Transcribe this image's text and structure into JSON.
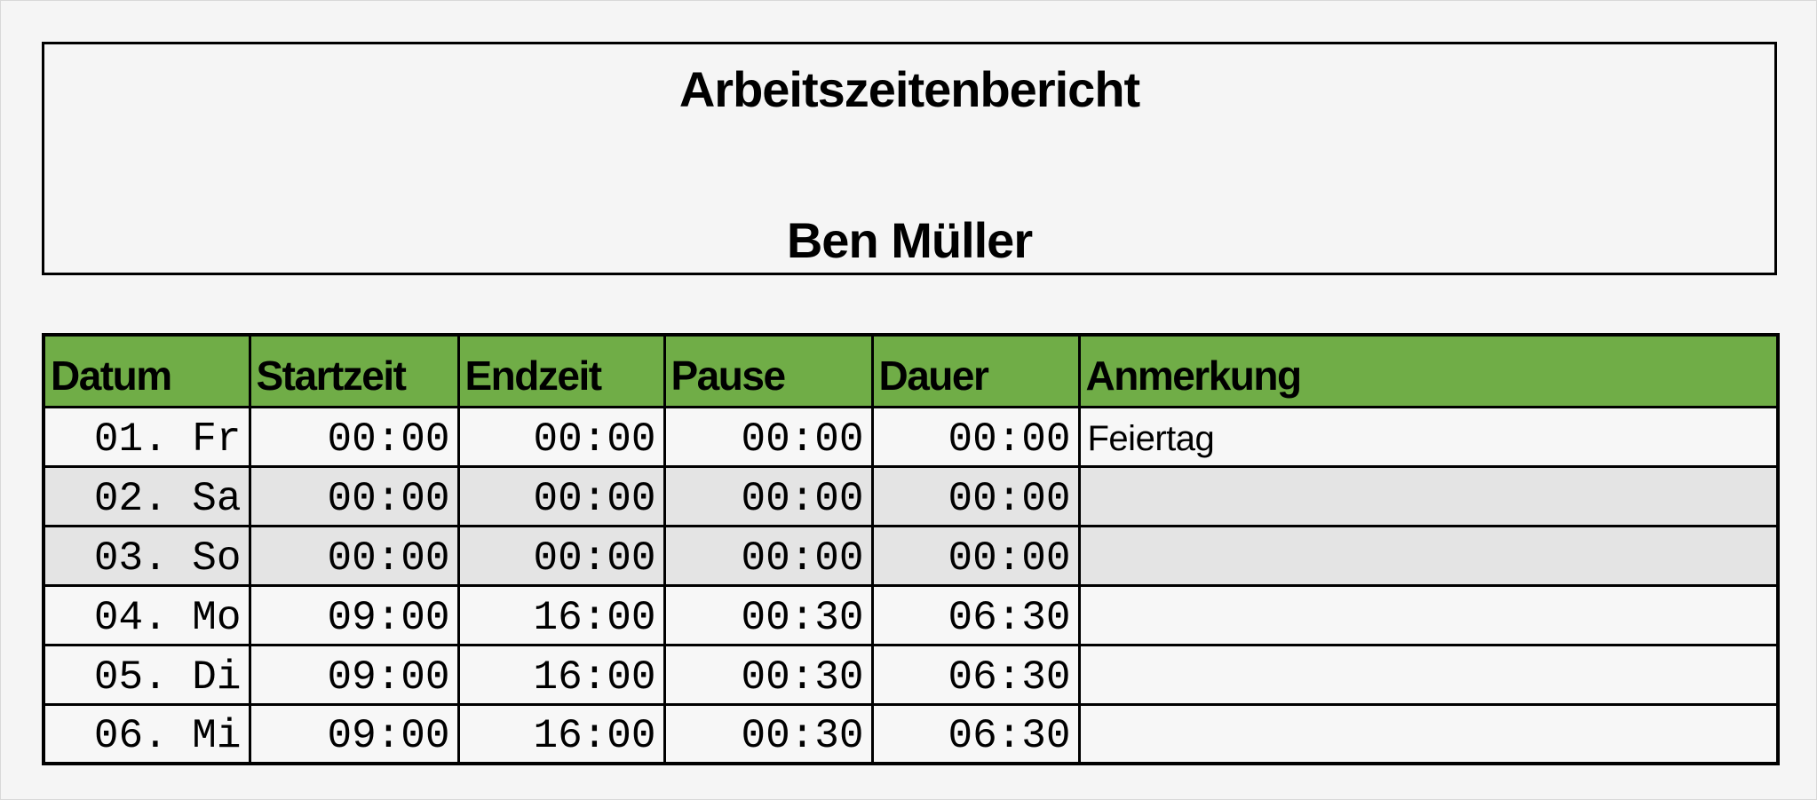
{
  "report": {
    "title": "Arbeitszeitenbericht",
    "employee": "Ben Müller"
  },
  "colors": {
    "header_green": "#70ad47",
    "weekend_gray": "#e4e4e4"
  },
  "table": {
    "columns": [
      "Datum",
      "Startzeit",
      "Endzeit",
      "Pause",
      "Dauer",
      "Anmerkung"
    ],
    "rows": [
      {
        "datum": "01. Fr",
        "start": "00:00",
        "ende": "00:00",
        "pause": "00:00",
        "dauer": "00:00",
        "anmerkung": "Feiertag",
        "weekend": false
      },
      {
        "datum": "02. Sa",
        "start": "00:00",
        "ende": "00:00",
        "pause": "00:00",
        "dauer": "00:00",
        "anmerkung": "",
        "weekend": true
      },
      {
        "datum": "03. So",
        "start": "00:00",
        "ende": "00:00",
        "pause": "00:00",
        "dauer": "00:00",
        "anmerkung": "",
        "weekend": true
      },
      {
        "datum": "04. Mo",
        "start": "09:00",
        "ende": "16:00",
        "pause": "00:30",
        "dauer": "06:30",
        "anmerkung": "",
        "weekend": false
      },
      {
        "datum": "05. Di",
        "start": "09:00",
        "ende": "16:00",
        "pause": "00:30",
        "dauer": "06:30",
        "anmerkung": "",
        "weekend": false
      },
      {
        "datum": "06. Mi",
        "start": "09:00",
        "ende": "16:00",
        "pause": "00:30",
        "dauer": "06:30",
        "anmerkung": "",
        "weekend": false
      }
    ]
  }
}
